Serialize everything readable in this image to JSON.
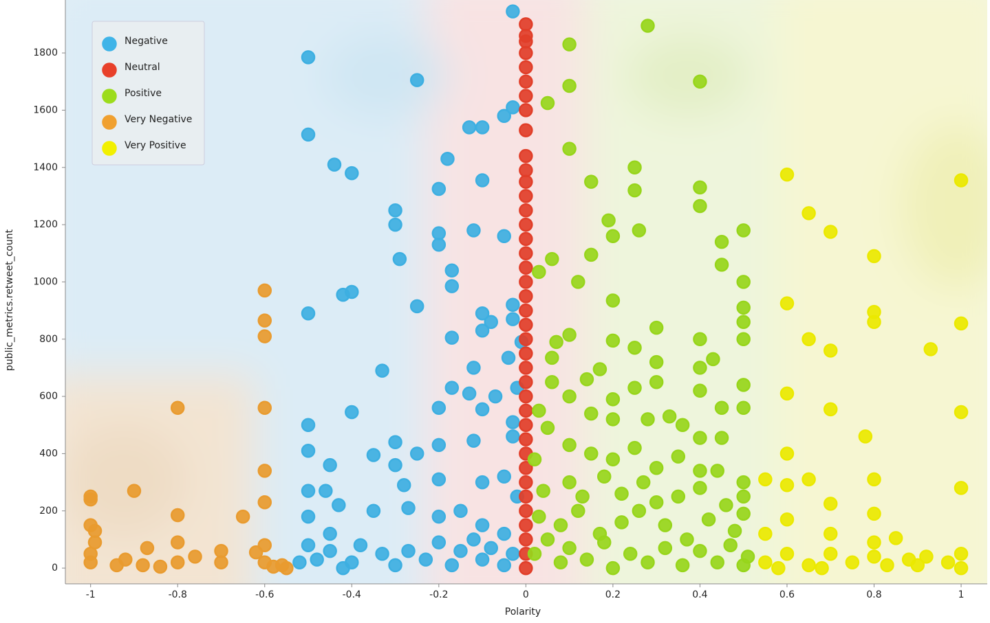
{
  "chart_data": {
    "type": "scatter",
    "x_label": "Polarity",
    "y_label": "public_metrics.retweet_count",
    "xlim": [
      -1.058,
      1.06
    ],
    "ylim": [
      -55,
      1985
    ],
    "xticks": [
      -1,
      -0.8,
      -0.6,
      -0.4,
      -0.2,
      0,
      0.2,
      0.4,
      0.6,
      0.8,
      1
    ],
    "yticks": [
      0,
      200,
      400,
      600,
      800,
      1000,
      1200,
      1400,
      1600,
      1800
    ],
    "legend": "top-left",
    "series": [
      {
        "name": "Negative",
        "color": "#3fb4e8",
        "x": [
          -0.5,
          -0.5,
          -0.44,
          -0.4,
          -0.25,
          -0.03,
          -0.13,
          -0.1,
          -0.05,
          -0.03,
          -0.2,
          -0.18,
          -0.1,
          -0.3,
          -0.3,
          -0.12,
          -0.2,
          -0.2,
          -0.05,
          -0.29,
          -0.17,
          -0.17,
          -0.42,
          -0.4,
          -0.25,
          -0.5,
          -0.1,
          -0.08,
          -0.03,
          -0.03,
          -0.17,
          -0.1,
          -0.33,
          -0.12,
          -0.04,
          -0.01,
          -0.17,
          -0.13,
          -0.07,
          -0.02,
          -0.5,
          -0.4,
          -0.2,
          -0.1,
          -0.03,
          -0.3,
          -0.25,
          -0.2,
          -0.12,
          -0.03,
          -0.5,
          -0.45,
          -0.35,
          -0.5,
          -0.46,
          -0.43,
          -0.3,
          -0.28,
          -0.2,
          -0.1,
          -0.05,
          -0.02,
          -0.5,
          -0.45,
          -0.35,
          -0.27,
          -0.2,
          -0.15,
          -0.1,
          -0.05,
          -0.5,
          -0.48,
          -0.45,
          -0.4,
          -0.38,
          -0.33,
          -0.3,
          -0.27,
          -0.23,
          -0.2,
          -0.17,
          -0.15,
          -0.12,
          -0.1,
          -0.08,
          -0.05,
          -0.03,
          -0.52,
          -0.42
        ],
        "values": [
          1785,
          1515,
          1410,
          1380,
          1705,
          1945,
          1540,
          1540,
          1580,
          1610,
          1325,
          1430,
          1355,
          1250,
          1200,
          1180,
          1170,
          1130,
          1160,
          1080,
          1040,
          985,
          955,
          965,
          915,
          890,
          890,
          860,
          870,
          920,
          805,
          830,
          690,
          700,
          735,
          790,
          630,
          610,
          600,
          630,
          500,
          545,
          560,
          555,
          510,
          440,
          400,
          430,
          445,
          460,
          410,
          360,
          395,
          270,
          270,
          220,
          360,
          290,
          310,
          300,
          320,
          250,
          180,
          120,
          200,
          210,
          180,
          200,
          150,
          120,
          80,
          30,
          60,
          20,
          80,
          50,
          10,
          60,
          30,
          90,
          10,
          60,
          100,
          30,
          70,
          10,
          50,
          20,
          0
        ]
      },
      {
        "name": "Neutral",
        "color": "#e8402a",
        "x": [
          0,
          0,
          0,
          0,
          0,
          0,
          0,
          0,
          0,
          0,
          0,
          0,
          0,
          0,
          0,
          0,
          0,
          0,
          0,
          0,
          0,
          0,
          0,
          0,
          0,
          0,
          0,
          0,
          0,
          0,
          0,
          0,
          0,
          0,
          0,
          0,
          0,
          0,
          0
        ],
        "values": [
          1900,
          1860,
          1840,
          1800,
          1750,
          1700,
          1650,
          1600,
          1530,
          1440,
          1390,
          1350,
          1300,
          1250,
          1200,
          1150,
          1100,
          1050,
          1000,
          950,
          900,
          850,
          800,
          750,
          700,
          650,
          600,
          550,
          500,
          450,
          400,
          350,
          300,
          250,
          200,
          150,
          100,
          50,
          0
        ]
      },
      {
        "name": "Positive",
        "color": "#9cdc1c",
        "x": [
          0.28,
          0.1,
          0.4,
          0.05,
          0.1,
          0.1,
          0.25,
          0.15,
          0.25,
          0.4,
          0.4,
          0.19,
          0.26,
          0.2,
          0.45,
          0.5,
          0.06,
          0.15,
          0.12,
          0.03,
          0.45,
          0.5,
          0.2,
          0.5,
          0.5,
          0.07,
          0.1,
          0.2,
          0.25,
          0.3,
          0.4,
          0.5,
          0.06,
          0.17,
          0.3,
          0.4,
          0.43,
          0.06,
          0.1,
          0.14,
          0.2,
          0.25,
          0.3,
          0.4,
          0.5,
          0.5,
          0.03,
          0.05,
          0.15,
          0.2,
          0.28,
          0.33,
          0.45,
          0.36,
          0.4,
          0.45,
          0.02,
          0.1,
          0.15,
          0.2,
          0.25,
          0.3,
          0.35,
          0.4,
          0.44,
          0.5,
          0.04,
          0.1,
          0.13,
          0.18,
          0.22,
          0.27,
          0.3,
          0.35,
          0.4,
          0.46,
          0.5,
          0.03,
          0.08,
          0.12,
          0.17,
          0.22,
          0.26,
          0.32,
          0.37,
          0.42,
          0.48,
          0.5,
          0.02,
          0.05,
          0.08,
          0.1,
          0.14,
          0.18,
          0.2,
          0.24,
          0.28,
          0.32,
          0.36,
          0.4,
          0.44,
          0.47,
          0.5,
          0.51
        ],
        "values": [
          1895,
          1830,
          1700,
          1625,
          1685,
          1465,
          1400,
          1350,
          1320,
          1330,
          1265,
          1215,
          1180,
          1160,
          1140,
          1180,
          1080,
          1095,
          1000,
          1035,
          1060,
          1000,
          935,
          910,
          860,
          790,
          815,
          795,
          770,
          840,
          800,
          800,
          735,
          695,
          720,
          700,
          730,
          650,
          600,
          660,
          590,
          630,
          650,
          620,
          640,
          560,
          550,
          490,
          540,
          520,
          520,
          530,
          560,
          500,
          455,
          455,
          380,
          430,
          400,
          380,
          420,
          350,
          390,
          340,
          340,
          300,
          270,
          300,
          250,
          320,
          260,
          300,
          230,
          250,
          280,
          220,
          250,
          180,
          150,
          200,
          120,
          160,
          200,
          150,
          100,
          170,
          130,
          190,
          50,
          100,
          20,
          70,
          30,
          90,
          0,
          50,
          20,
          70,
          10,
          60,
          20,
          80,
          10,
          40
        ]
      },
      {
        "name": "Very Negative",
        "color": "#f0a030",
        "x": [
          -1,
          -1,
          -1,
          -1,
          -0.99,
          -0.99,
          -1,
          -0.9,
          -0.92,
          -0.88,
          -0.87,
          -0.8,
          -0.8,
          -0.8,
          -0.8,
          -0.76,
          -0.7,
          -0.7,
          -0.65,
          -0.62,
          -0.6,
          -0.6,
          -0.6,
          -0.6,
          -0.6,
          -0.6,
          -0.6,
          -0.6,
          -0.58,
          -0.56,
          -0.55,
          -0.94,
          -0.84
        ],
        "values": [
          250,
          240,
          20,
          150,
          130,
          90,
          50,
          270,
          30,
          10,
          70,
          560,
          185,
          90,
          20,
          40,
          60,
          20,
          180,
          55,
          970,
          865,
          810,
          560,
          340,
          230,
          80,
          20,
          5,
          10,
          0,
          10,
          5
        ]
      },
      {
        "name": "Very Positive",
        "color": "#f2f000",
        "x": [
          0.6,
          0.65,
          0.7,
          0.8,
          1,
          0.6,
          0.8,
          0.8,
          1,
          0.65,
          0.7,
          0.93,
          0.6,
          0.7,
          1,
          0.78,
          0.6,
          0.55,
          0.6,
          0.65,
          0.8,
          1,
          0.7,
          0.6,
          0.8,
          0.55,
          0.7,
          0.8,
          0.85,
          0.6,
          0.55,
          0.65,
          0.7,
          0.75,
          0.8,
          0.88,
          0.92,
          0.97,
          1,
          1,
          0.9,
          0.58,
          0.68,
          0.83
        ],
        "values": [
          1375,
          1240,
          1175,
          1090,
          1355,
          925,
          895,
          860,
          855,
          800,
          760,
          765,
          610,
          555,
          545,
          460,
          400,
          310,
          290,
          310,
          310,
          280,
          225,
          170,
          190,
          120,
          120,
          90,
          105,
          50,
          20,
          10,
          50,
          20,
          40,
          30,
          40,
          20,
          50,
          0,
          10,
          0,
          0,
          10
        ]
      }
    ]
  }
}
